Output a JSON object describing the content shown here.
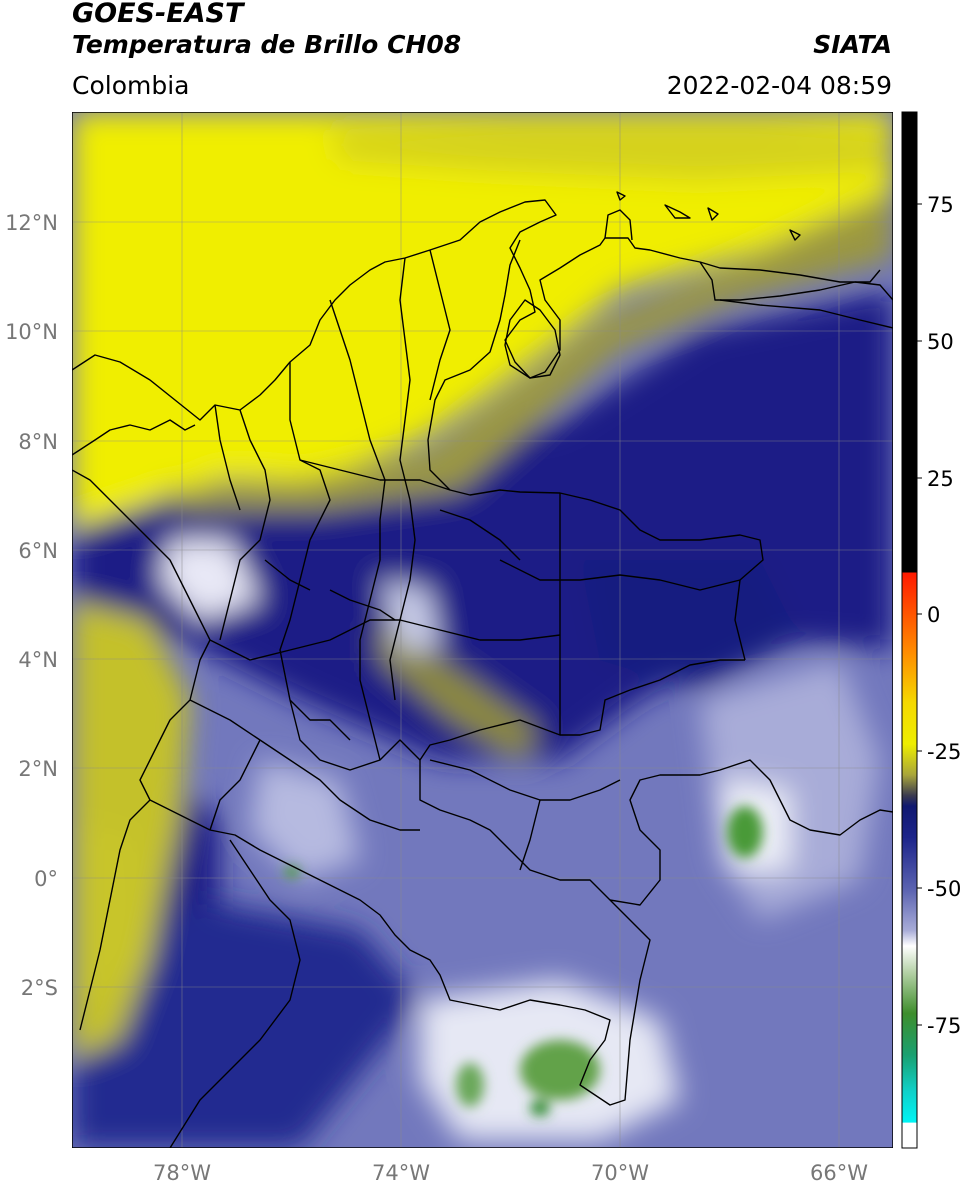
{
  "header": {
    "satellite": "GOES-EAST",
    "product": "Temperatura de Brillo CH08",
    "region": "Colombia",
    "brand": "SIATA",
    "timestamp": "2022-02-04 08:59"
  },
  "map": {
    "lon_range": [
      -80,
      -65
    ],
    "lat_range": [
      -5,
      14
    ],
    "lat_ticks": [
      {
        "value": 12,
        "label": "12°N"
      },
      {
        "value": 10,
        "label": "10°N"
      },
      {
        "value": 8,
        "label": "8°N"
      },
      {
        "value": 6,
        "label": "6°N"
      },
      {
        "value": 4,
        "label": "4°N"
      },
      {
        "value": 2,
        "label": "2°N"
      },
      {
        "value": 0,
        "label": "0°"
      },
      {
        "value": -2,
        "label": "2°S"
      }
    ],
    "lon_ticks": [
      {
        "value": -78,
        "label": "78°W"
      },
      {
        "value": -74,
        "label": "74°W"
      },
      {
        "value": -70,
        "label": "70°W"
      },
      {
        "value": -66,
        "label": "66°W"
      }
    ],
    "gridlines": true
  },
  "colorbar": {
    "range": [
      -95,
      90
    ],
    "ticks": [
      {
        "value": 75,
        "label": "75"
      },
      {
        "value": 50,
        "label": "50"
      },
      {
        "value": 25,
        "label": "25"
      },
      {
        "value": 0,
        "label": "0"
      },
      {
        "value": -25,
        "label": "-25"
      },
      {
        "value": -50,
        "label": "-50"
      },
      {
        "value": -75,
        "label": "-75"
      }
    ],
    "colors": {
      "black": "#000000",
      "red": "#ff2000",
      "orange": "#ff9a00",
      "yellow": "#f2ef00",
      "olive": "#8f8d3a",
      "navy": "#141a82",
      "lavender": "#8a90c8",
      "white": "#ffffff",
      "green": "#3a8a2a",
      "teal": "#10b8a0",
      "cyan": "#00f0f0"
    }
  }
}
